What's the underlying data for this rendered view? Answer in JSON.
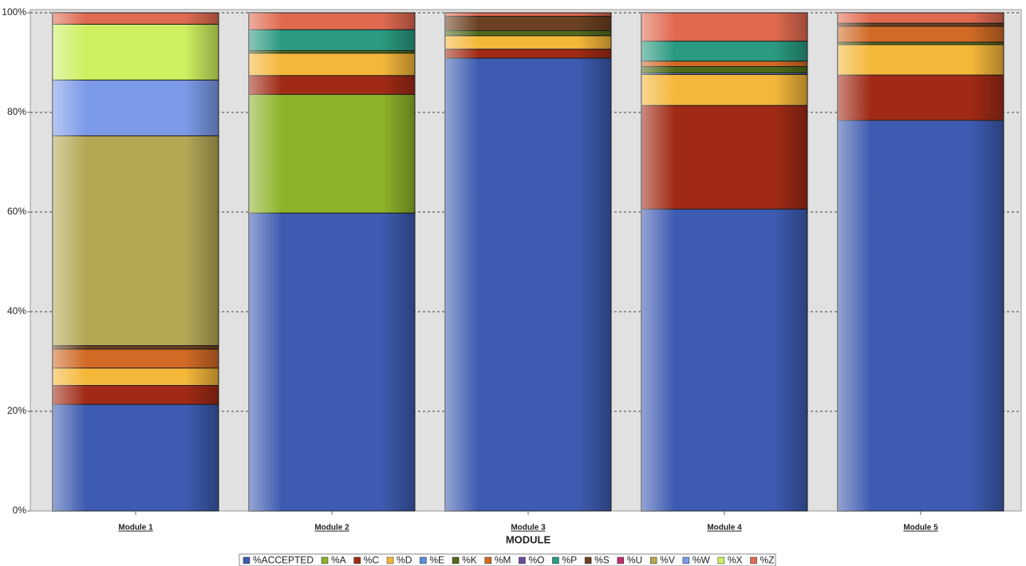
{
  "chart_data": {
    "type": "stacked_bar",
    "xlabel": "MODULE",
    "categories": [
      "Module 1",
      "Module 2",
      "Module 3",
      "Module 4",
      "Module 5"
    ],
    "series": [
      {
        "name": "%ACCEPTED",
        "color": "#3d5bb0",
        "values": [
          21.4,
          59.8,
          90.9,
          60.6,
          78.4
        ]
      },
      {
        "name": "%A",
        "color": "#8db32a",
        "values": [
          0,
          23.8,
          0,
          0,
          0
        ]
      },
      {
        "name": "%C",
        "color": "#a02a15",
        "values": [
          3.8,
          3.8,
          1.8,
          20.8,
          9.1
        ]
      },
      {
        "name": "%D",
        "color": "#f5b73a",
        "values": [
          3.5,
          4.5,
          2.7,
          6.2,
          6.1
        ]
      },
      {
        "name": "%E",
        "color": "#5b8fd6",
        "values": [
          0,
          0,
          0,
          0.3,
          0
        ]
      },
      {
        "name": "%K",
        "color": "#4f6b1a",
        "values": [
          0,
          0.5,
          1.0,
          1.3,
          0.5
        ]
      },
      {
        "name": "%M",
        "color": "#d06a25",
        "values": [
          3.8,
          0,
          0,
          1.1,
          3.2
        ]
      },
      {
        "name": "%O",
        "color": "#6a4a9a",
        "values": [
          0,
          0,
          0,
          0,
          0
        ]
      },
      {
        "name": "%P",
        "color": "#2a9a80",
        "values": [
          0,
          4.2,
          0,
          4.0,
          0
        ]
      },
      {
        "name": "%S",
        "color": "#6b4020",
        "values": [
          0.7,
          0,
          2.9,
          0,
          0.6
        ]
      },
      {
        "name": "%U",
        "color": "#c0306a",
        "values": [
          0,
          0,
          0,
          0,
          0
        ]
      },
      {
        "name": "%V",
        "color": "#b5a855",
        "values": [
          42.1,
          0,
          0,
          0,
          0
        ]
      },
      {
        "name": "%W",
        "color": "#7b9ae8",
        "values": [
          11.2,
          0,
          0,
          0,
          0
        ]
      },
      {
        "name": "%X",
        "color": "#ccf060",
        "values": [
          11.2,
          0,
          0,
          0,
          0
        ]
      },
      {
        "name": "%Z",
        "color": "#e06a50",
        "values": [
          2.3,
          3.4,
          0.7,
          5.7,
          2.1
        ]
      }
    ],
    "ylim": [
      0,
      100
    ],
    "yticks": [
      {
        "value": 0,
        "label": "0%"
      },
      {
        "value": 20,
        "label": "20%"
      },
      {
        "value": 40,
        "label": "40%"
      },
      {
        "value": 60,
        "label": "60%"
      },
      {
        "value": 80,
        "label": "80%"
      },
      {
        "value": 100,
        "label": "100%"
      }
    ],
    "grid": true
  }
}
